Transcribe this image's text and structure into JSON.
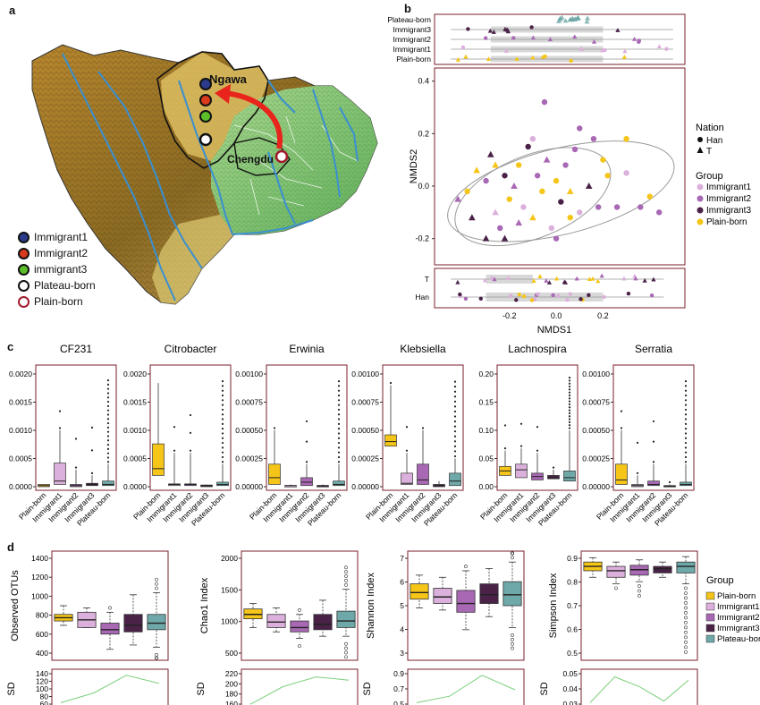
{
  "panels": {
    "a": "a",
    "b": "b",
    "c": "c",
    "d": "d"
  },
  "map": {
    "city_ngawa": "Ngawa",
    "city_chengdu": "Chengdu",
    "legend": [
      {
        "label": "Immigrant1",
        "color": "#2b3a8a",
        "ring": "#111111"
      },
      {
        "label": "Immigrant2",
        "color": "#d93a1c",
        "ring": "#111111"
      },
      {
        "label": "immigrant3",
        "color": "#5cbf2a",
        "ring": "#111111"
      },
      {
        "label": "Plateau-born",
        "color": "#ffffff",
        "ring": "#111111"
      },
      {
        "label": "Plain-born",
        "color": "#ffffff",
        "ring": "#a01c2c"
      }
    ]
  },
  "nmds": {
    "xlabel": "NMDS1",
    "ylabel": "NMDS2",
    "x_ticks": [
      "-0.2",
      "0.0",
      "0.2"
    ],
    "y_ticks": [
      "0.4",
      "0.2",
      "0.0",
      "-0.2"
    ],
    "top_categories": [
      "Plateau-born",
      "Immigrant3",
      "Immigrant2",
      "Immigrant1",
      "Plain-born"
    ],
    "bottom_categories": [
      "T",
      "Han"
    ],
    "legend_nation_title": "Nation",
    "legend_nation": [
      "Han",
      "T"
    ],
    "legend_group_title": "Group",
    "legend_group": [
      "Immigrant1",
      "Immigrant2",
      "Immigrant3",
      "Plain-born"
    ]
  },
  "groups": {
    "labels": [
      "Plain-born",
      "Immigrant1",
      "Immigrant2",
      "Immigrant3",
      "Plateau-born"
    ],
    "colors": [
      "#f5c518",
      "#dcb0dc",
      "#a868b4",
      "#4a2248",
      "#6ea8a8"
    ]
  },
  "panel_c": [
    {
      "title": "CF231",
      "yticks": [
        "0.0020",
        "0.0015",
        "0.0010",
        "0.0005",
        "0.0000"
      ]
    },
    {
      "title": "Citrobacter",
      "yticks": [
        "0.0020",
        "0.0015",
        "0.0010",
        "0.0005",
        "0.0000"
      ]
    },
    {
      "title": "Erwinia",
      "yticks": [
        "0.00100",
        "0.00075",
        "0.00050",
        "0.00025",
        "0.00000"
      ]
    },
    {
      "title": "Klebsiella",
      "yticks": [
        "0.00100",
        "0.00075",
        "0.00050",
        "0.00025",
        "0.00000"
      ]
    },
    {
      "title": "Lachnospira",
      "yticks": [
        "0.20",
        "0.15",
        "0.10",
        "0.05",
        "0.00"
      ]
    },
    {
      "title": "Serratia",
      "yticks": [
        "0.00100",
        "0.00075",
        "0.00050",
        "0.00025",
        "0.00000"
      ]
    }
  ],
  "panel_d": [
    {
      "ylabel": "Observed OTUs",
      "yticks": [
        "1400",
        "1200",
        "1000",
        "800",
        "600",
        "400"
      ],
      "sd_ticks": [
        "140",
        "120",
        "100",
        "80",
        "60"
      ]
    },
    {
      "ylabel": "Chao1 Index",
      "yticks": [
        "2000",
        "1500",
        "1000",
        "500"
      ],
      "sd_ticks": [
        "220",
        "200",
        "180",
        "160"
      ]
    },
    {
      "ylabel": "Shannon Index",
      "yticks": [
        "7",
        "6",
        "5",
        "4",
        "3"
      ],
      "sd_ticks": [
        "0.9",
        "0.7",
        "0.5"
      ]
    },
    {
      "ylabel": "Simpson Index",
      "yticks": [
        "0.9",
        "0.8",
        "0.7",
        "0.6",
        "0.5"
      ],
      "sd_ticks": [
        "0.05",
        "0.04",
        "0.03"
      ]
    }
  ],
  "sd_label": "SD",
  "legend_d_title": "Group",
  "colors": {
    "frame": "#7a1f2b",
    "river": "#3a8fd0",
    "sd_line": "#7ccf7c",
    "arrow": "#e8241c"
  }
}
